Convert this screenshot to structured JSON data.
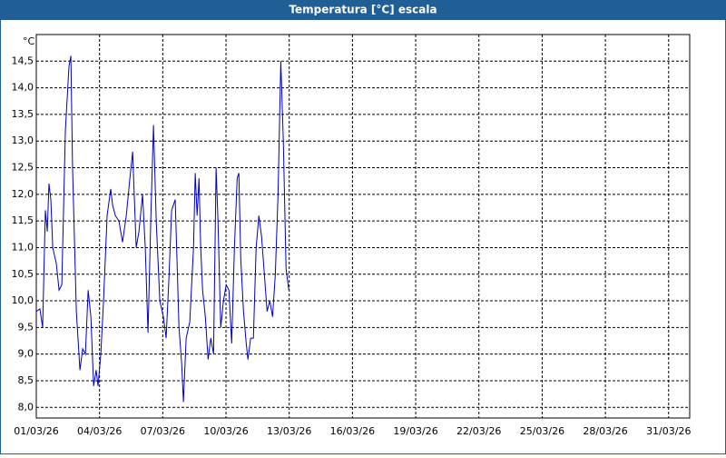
{
  "chart_data": {
    "type": "line",
    "title": "Temperatura [°C] escala",
    "y_unit": "°C",
    "x": [
      0,
      0.17,
      0.3,
      0.43,
      0.52,
      0.6,
      0.69,
      0.78,
      0.95,
      1.08,
      1.21,
      1.38,
      1.55,
      1.64,
      1.72,
      1.9,
      2.07,
      2.2,
      2.33,
      2.46,
      2.59,
      2.72,
      2.84,
      2.93,
      3.06,
      3.19,
      3.36,
      3.53,
      3.62,
      3.75,
      3.92,
      4.09,
      4.27,
      4.44,
      4.57,
      4.74,
      4.87,
      5.04,
      5.17,
      5.3,
      5.43,
      5.56,
      5.69,
      5.86,
      6.03,
      6.16,
      6.29,
      6.42,
      6.59,
      6.77,
      6.9,
      6.98,
      7.11,
      7.28,
      7.46,
      7.54,
      7.63,
      7.72,
      7.8,
      7.89,
      8.02,
      8.15,
      8.28,
      8.41,
      8.53,
      8.62,
      8.75,
      8.88,
      9.01,
      9.14,
      9.27,
      9.4,
      9.53,
      9.61,
      9.7,
      9.83,
      9.96,
      10.04,
      10.17,
      10.3,
      10.43,
      10.56,
      10.69,
      10.82,
      10.95,
      11.08,
      11.21,
      11.34,
      11.47,
      11.6,
      11.72,
      11.85,
      11.98
    ],
    "series": [
      {
        "color": "#0000c0",
        "values": [
          9.8,
          9.85,
          9.5,
          11.7,
          11.3,
          12.2,
          11.9,
          11.0,
          10.7,
          10.2,
          10.3,
          13.2,
          14.4,
          14.6,
          12.5,
          9.8,
          8.7,
          9.1,
          9.0,
          10.2,
          9.7,
          8.4,
          8.7,
          8.4,
          9.0,
          10.0,
          11.6,
          12.1,
          11.8,
          11.6,
          11.5,
          11.1,
          11.6,
          12.3,
          12.8,
          11.0,
          11.3,
          12.0,
          11.0,
          9.4,
          11.5,
          13.3,
          11.5,
          10.0,
          9.7,
          9.3,
          10.4,
          11.7,
          11.9,
          9.5,
          8.8,
          8.1,
          9.3,
          9.6,
          11.0,
          12.4,
          11.6,
          12.3,
          11.0,
          10.2,
          9.7,
          8.9,
          9.3,
          9.0,
          12.5,
          11.5,
          9.5,
          10.0,
          10.3,
          10.2,
          9.2,
          11.0,
          12.3,
          12.4,
          10.8,
          9.8,
          9.2,
          8.9,
          9.3,
          9.3,
          11.0,
          11.6,
          11.2,
          10.5,
          9.8,
          10.0,
          9.7,
          10.5,
          12.0,
          14.5,
          13.0,
          10.6,
          10.2
        ]
      }
    ],
    "xlim": [
      0,
      31
    ],
    "ylim": [
      7.8,
      15
    ],
    "xticks": [
      {
        "value": 0,
        "label": "01/03/26"
      },
      {
        "value": 3,
        "label": "04/03/26"
      },
      {
        "value": 6,
        "label": "07/03/26"
      },
      {
        "value": 9,
        "label": "10/03/26"
      },
      {
        "value": 12,
        "label": "13/03/26"
      },
      {
        "value": 15,
        "label": "16/03/26"
      },
      {
        "value": 18,
        "label": "19/03/26"
      },
      {
        "value": 21,
        "label": "22/03/26"
      },
      {
        "value": 24,
        "label": "25/03/26"
      },
      {
        "value": 27,
        "label": "28/03/26"
      },
      {
        "value": 30,
        "label": "31/03/26"
      }
    ],
    "yticks": [
      {
        "value": 8,
        "label": "8,0"
      },
      {
        "value": 8.5,
        "label": "8,5"
      },
      {
        "value": 9,
        "label": "9,0"
      },
      {
        "value": 9.5,
        "label": "9,5"
      },
      {
        "value": 10,
        "label": "10,0"
      },
      {
        "value": 10.5,
        "label": "10,5"
      },
      {
        "value": 11,
        "label": "11,0"
      },
      {
        "value": 11.5,
        "label": "11,5"
      },
      {
        "value": 12,
        "label": "12,0"
      },
      {
        "value": 12.5,
        "label": "12,5"
      },
      {
        "value": 13,
        "label": "13,0"
      },
      {
        "value": 13.5,
        "label": "13,5"
      },
      {
        "value": 14,
        "label": "14,0"
      },
      {
        "value": 14.5,
        "label": "14,5"
      }
    ],
    "grid": true
  }
}
